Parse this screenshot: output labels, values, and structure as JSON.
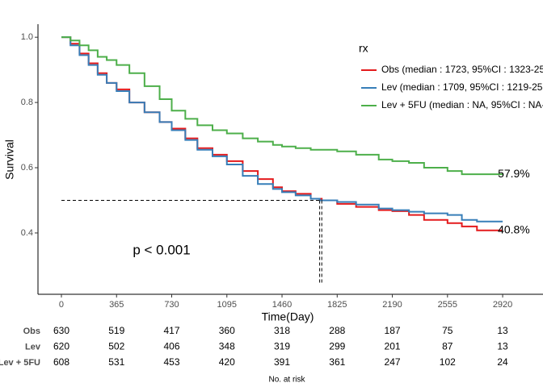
{
  "chart_data": {
    "type": "step",
    "xlabel": "Time(Day)",
    "ylabel": "Survival",
    "annotation": "p < 0.001",
    "legend_title": "rx",
    "xlim": [
      -155,
      3187
    ],
    "ylim": [
      0.212,
      1.04
    ],
    "xticks": [
      0,
      365,
      730,
      1095,
      1460,
      1825,
      2190,
      2555,
      2920
    ],
    "yticks": [
      0.4,
      0.6,
      0.8,
      {
        "value": 1,
        "label": "1.0"
      }
    ],
    "median_line": {
      "y": 0.5,
      "x": [
        1709,
        1723
      ]
    },
    "series": [
      {
        "name": "Obs (median : 1723, 95%CI : 1323-25",
        "color": "#E41A1C",
        "x": [
          0,
          60,
          120,
          180,
          240,
          300,
          365,
          450,
          550,
          650,
          730,
          820,
          900,
          1000,
          1095,
          1200,
          1300,
          1400,
          1460,
          1550,
          1650,
          1723,
          1825,
          1950,
          2100,
          2190,
          2300,
          2400,
          2555,
          2650,
          2750,
          2920
        ],
        "values": [
          1.0,
          0.98,
          0.95,
          0.92,
          0.89,
          0.86,
          0.84,
          0.8,
          0.77,
          0.74,
          0.72,
          0.69,
          0.66,
          0.64,
          0.62,
          0.59,
          0.565,
          0.54,
          0.528,
          0.52,
          0.505,
          0.5,
          0.489,
          0.48,
          0.47,
          0.467,
          0.455,
          0.44,
          0.43,
          0.42,
          0.408,
          0.408
        ],
        "end_label": {
          "value": 0.408,
          "label": "40.8%"
        }
      },
      {
        "name": "Lev (median : 1709, 95%CI : 1219-25",
        "color": "#377EB8",
        "x": [
          0,
          60,
          120,
          180,
          240,
          300,
          365,
          450,
          550,
          650,
          730,
          820,
          900,
          1000,
          1095,
          1200,
          1300,
          1400,
          1460,
          1550,
          1650,
          1709,
          1825,
          1950,
          2100,
          2190,
          2300,
          2400,
          2555,
          2650,
          2750,
          2920
        ],
        "values": [
          1.0,
          0.975,
          0.945,
          0.915,
          0.885,
          0.86,
          0.835,
          0.8,
          0.77,
          0.74,
          0.715,
          0.685,
          0.655,
          0.635,
          0.61,
          0.575,
          0.55,
          0.535,
          0.525,
          0.515,
          0.505,
          0.5,
          0.495,
          0.487,
          0.475,
          0.47,
          0.465,
          0.46,
          0.455,
          0.44,
          0.435,
          0.435
        ]
      },
      {
        "name": "Lev + 5FU (median : NA, 95%CI : NA-",
        "color": "#4DAF4A",
        "x": [
          0,
          60,
          120,
          180,
          240,
          300,
          365,
          450,
          550,
          650,
          730,
          820,
          900,
          1000,
          1095,
          1200,
          1300,
          1400,
          1460,
          1550,
          1650,
          1825,
          1950,
          2100,
          2190,
          2300,
          2400,
          2555,
          2650,
          2920
        ],
        "values": [
          1.0,
          0.99,
          0.975,
          0.96,
          0.94,
          0.93,
          0.915,
          0.89,
          0.85,
          0.81,
          0.775,
          0.75,
          0.73,
          0.715,
          0.705,
          0.69,
          0.68,
          0.67,
          0.665,
          0.66,
          0.655,
          0.65,
          0.64,
          0.625,
          0.62,
          0.615,
          0.6,
          0.59,
          0.58,
          0.579
        ],
        "end_label": {
          "value": 0.579,
          "label": "57.9%"
        }
      }
    ],
    "risk_table": {
      "title": "No. at risk",
      "rows": [
        {
          "name": "Obs",
          "values": [
            630,
            519,
            417,
            360,
            318,
            288,
            187,
            75,
            13
          ]
        },
        {
          "name": "Lev",
          "values": [
            620,
            502,
            406,
            348,
            319,
            299,
            201,
            87,
            13
          ]
        },
        {
          "name": "Lev + 5FU",
          "values": [
            608,
            531,
            453,
            420,
            391,
            361,
            247,
            102,
            24
          ]
        }
      ]
    }
  }
}
